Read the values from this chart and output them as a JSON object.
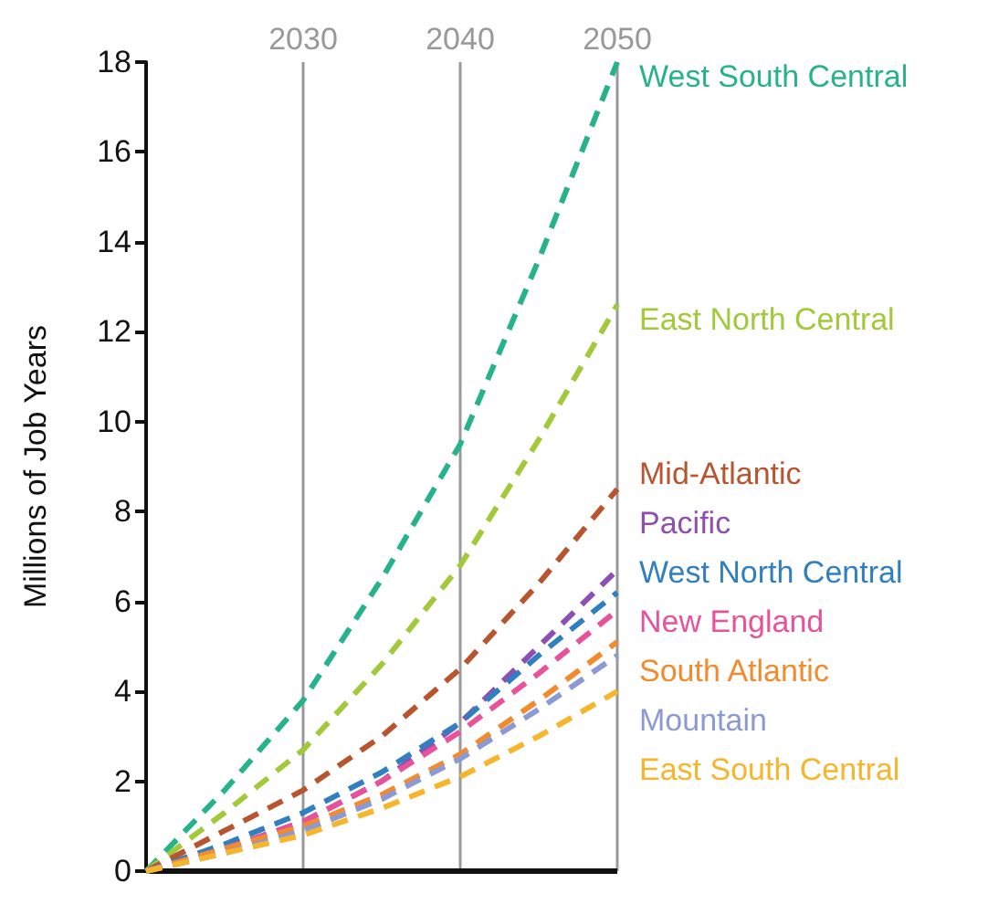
{
  "chart_data": {
    "type": "line",
    "ylabel": "Millions of Job Years",
    "x": [
      2020,
      2025,
      2030,
      2035,
      2040,
      2045,
      2050
    ],
    "xlim": [
      2020,
      2050
    ],
    "xticks": [
      2030,
      2040,
      2050
    ],
    "ylim": [
      0,
      18
    ],
    "yticks": [
      0,
      2,
      4,
      6,
      8,
      10,
      12,
      14,
      16,
      18
    ],
    "grid": "x",
    "legend": false,
    "marker": "none",
    "line_style": "dashed",
    "series": [
      {
        "name": "West South Central",
        "color": "#26b38c",
        "values": [
          0,
          1.8,
          3.8,
          6.5,
          9.5,
          13.6,
          18
        ]
      },
      {
        "name": "East North Central",
        "color": "#a2c93a",
        "values": [
          0,
          1.3,
          2.7,
          4.6,
          6.8,
          9.6,
          12.6
        ]
      },
      {
        "name": "Mid-Atlantic",
        "color": "#b8552f",
        "values": [
          0,
          0.9,
          1.8,
          3.0,
          4.5,
          6.4,
          8.5
        ]
      },
      {
        "name": "Pacific",
        "color": "#8e4fb0",
        "values": [
          0,
          0.5,
          1.1,
          2.0,
          3.3,
          5.0,
          6.7
        ]
      },
      {
        "name": "West North Central",
        "color": "#2f7fc1",
        "values": [
          0,
          0.6,
          1.3,
          2.2,
          3.3,
          4.8,
          6.2
        ]
      },
      {
        "name": "New England",
        "color": "#e8529b",
        "values": [
          0,
          0.5,
          1.1,
          2.0,
          3.1,
          4.4,
          5.8
        ]
      },
      {
        "name": "South Atlantic",
        "color": "#f28a2e",
        "values": [
          0,
          0.5,
          1.0,
          1.7,
          2.6,
          3.8,
          5.1
        ]
      },
      {
        "name": "Mountain",
        "color": "#8c9ad4",
        "values": [
          0,
          0.4,
          0.9,
          1.6,
          2.5,
          3.6,
          4.8
        ]
      },
      {
        "name": "East South Central",
        "color": "#f7b52b",
        "values": [
          0,
          0.4,
          0.8,
          1.4,
          2.1,
          3.0,
          4.0
        ]
      }
    ]
  }
}
